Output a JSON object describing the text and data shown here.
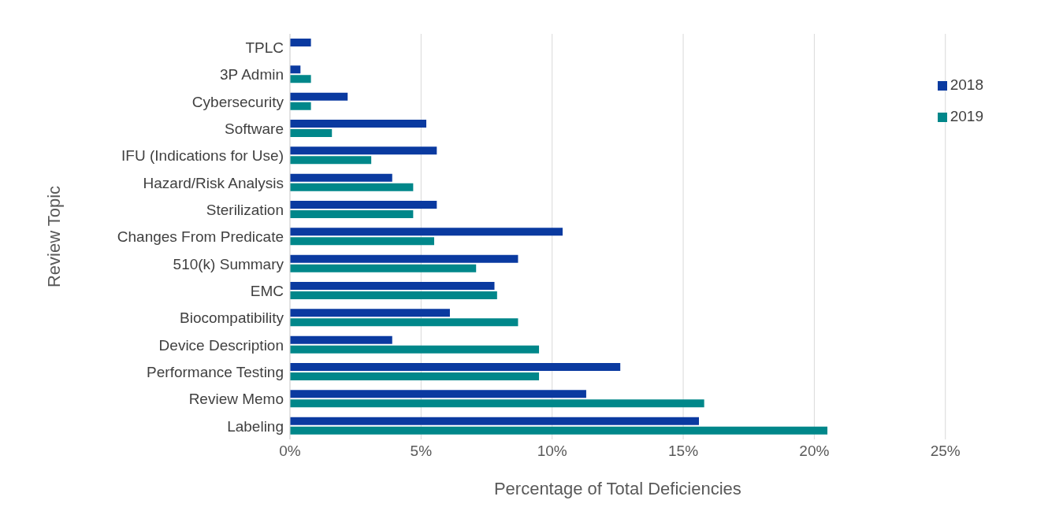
{
  "chart_data": {
    "type": "bar",
    "orientation": "horizontal",
    "xlabel": "Percentage of Total Deficiencies",
    "ylabel": "Review Topic",
    "categories": [
      "TPLC",
      "3P Admin",
      "Cybersecurity",
      "Software",
      "IFU (Indications for Use)",
      "Hazard/Risk Analysis",
      "Sterilization",
      "Changes From Predicate",
      "510(k) Summary",
      "EMC",
      "Biocompatibility",
      "Device Description",
      "Performance Testing",
      "Review Memo",
      "Labeling"
    ],
    "series": [
      {
        "name": "2018",
        "color": "#0a3aa0",
        "values": [
          0.8,
          0.4,
          2.2,
          5.2,
          5.6,
          3.9,
          5.6,
          10.4,
          8.7,
          7.8,
          6.1,
          3.9,
          12.6,
          11.3,
          15.6
        ]
      },
      {
        "name": "2019",
        "color": "#00878a",
        "values": [
          null,
          0.8,
          0.8,
          1.6,
          3.1,
          4.7,
          4.7,
          5.5,
          7.1,
          7.9,
          8.7,
          9.5,
          9.5,
          15.8,
          20.5
        ]
      }
    ],
    "xlim": [
      0,
      25
    ],
    "xticks": [
      {
        "value": 0,
        "label": "0%"
      },
      {
        "value": 5,
        "label": "5%"
      },
      {
        "value": 10,
        "label": "10%"
      },
      {
        "value": 15,
        "label": "15%"
      },
      {
        "value": 20,
        "label": "20%"
      },
      {
        "value": 25,
        "label": "25%"
      }
    ],
    "grid": "x",
    "legend": "top right"
  }
}
